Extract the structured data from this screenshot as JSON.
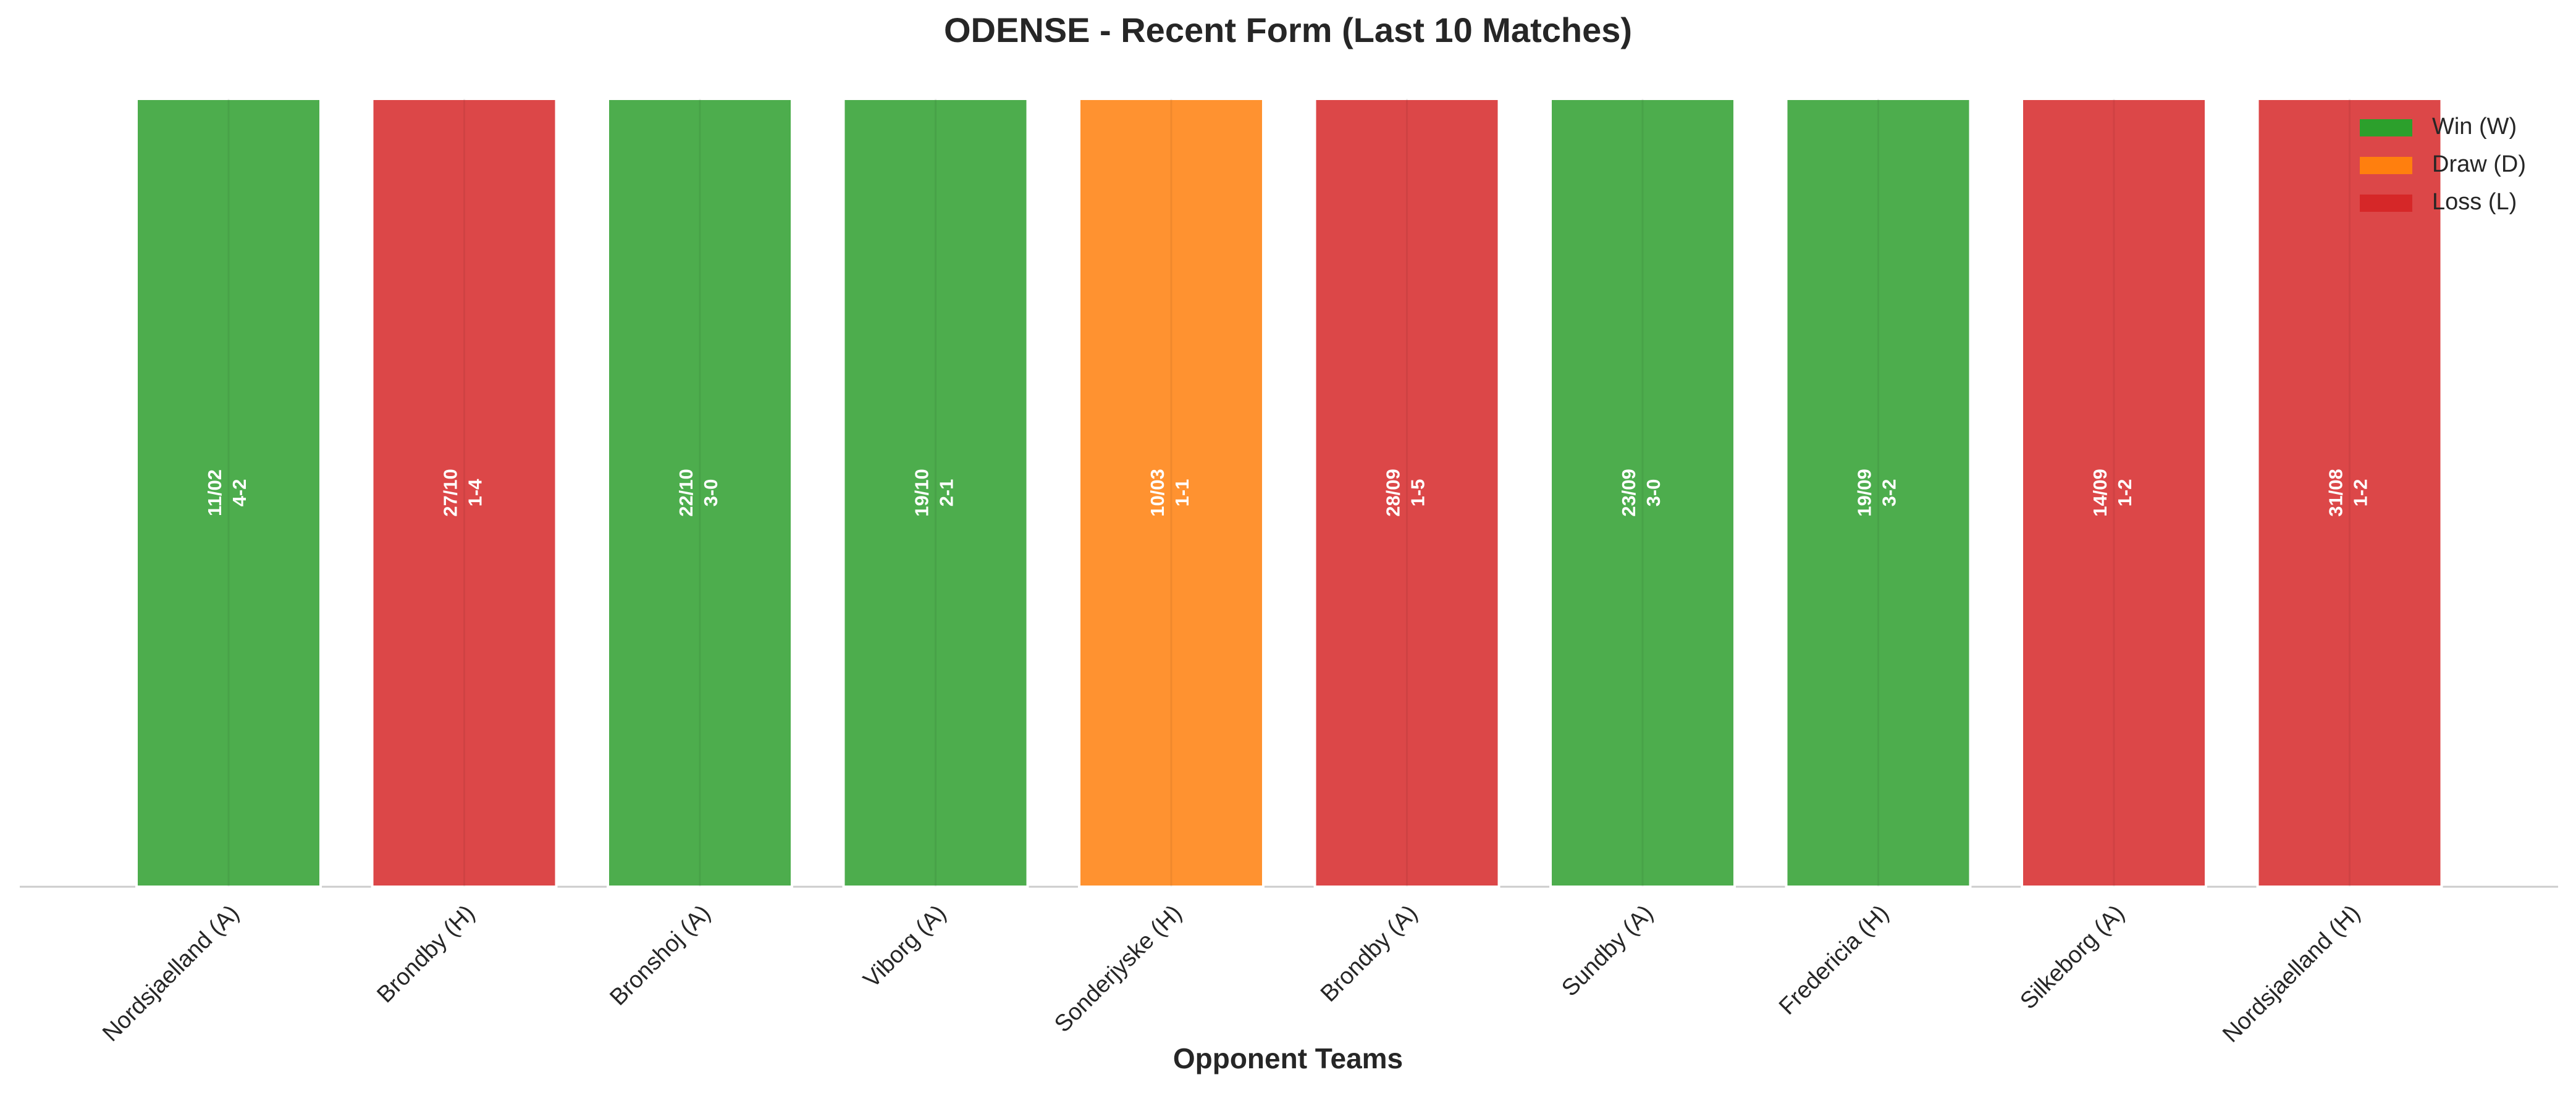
{
  "chart_data": {
    "type": "bar",
    "title": "ODENSE - Recent Form (Last 10 Matches)",
    "x_label": "Opponent Teams",
    "categories": [
      "Nordsjaelland (A)",
      "Brondby (H)",
      "Bronshoj (A)",
      "Viborg (A)",
      "Sonderjyske (H)",
      "Brondby (A)",
      "Sundby (A)",
      "Fredericia (H)",
      "Silkeborg (A)",
      "Nordsjaelland (H)"
    ],
    "values": [
      1,
      1,
      1,
      1,
      1,
      1,
      1,
      1,
      1,
      1
    ],
    "dates": [
      "11/02",
      "27/10",
      "22/10",
      "19/10",
      "10/03",
      "28/09",
      "23/09",
      "19/09",
      "14/09",
      "31/08"
    ],
    "scores": [
      "4-2",
      "1-4",
      "3-0",
      "2-1",
      "1-1",
      "1-5",
      "3-0",
      "3-2",
      "1-2",
      "1-2"
    ],
    "colors": [
      "#4dad4d",
      "#dc4748",
      "#4dad4d",
      "#4dad4d",
      "#ff9230",
      "#dc4748",
      "#4dad4d",
      "#4dad4d",
      "#dc4748",
      "#dc4748"
    ],
    "ylim": [
      0,
      1
    ],
    "legend": [
      {
        "name": "Win (W)",
        "color": "#2ca02c"
      },
      {
        "name": "Draw (D)",
        "color": "#ff7f0e"
      },
      {
        "name": "Loss (L)",
        "color": "#d62728"
      }
    ],
    "legend_position": "upper right"
  }
}
